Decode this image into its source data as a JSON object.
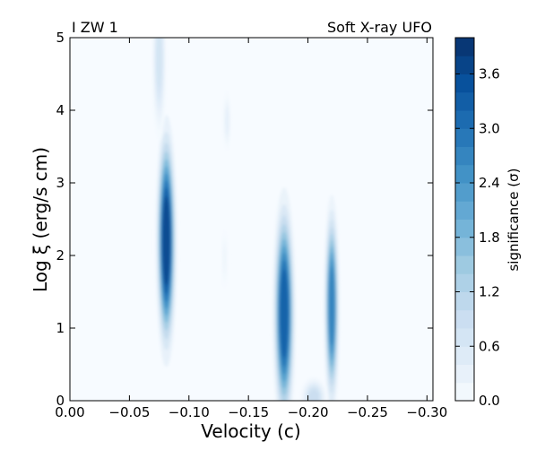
{
  "chart_data": {
    "type": "heatmap",
    "title_left": "I ZW 1",
    "title_right": "Soft X-ray UFO",
    "xlabel": "Velocity (c)",
    "ylabel": "Log ξ (erg/s cm)",
    "colorbar_label": "significance (σ)",
    "xlim": [
      0.0,
      -0.305
    ],
    "ylim": [
      0,
      5
    ],
    "x_ticks": [
      0.0,
      -0.05,
      -0.1,
      -0.15,
      -0.2,
      -0.25,
      -0.3
    ],
    "x_tick_labels": [
      "0.00",
      "−0.05",
      "−0.10",
      "−0.15",
      "−0.20",
      "−0.25",
      "−0.30"
    ],
    "y_ticks": [
      0,
      1,
      2,
      3,
      4,
      5
    ],
    "y_tick_labels": [
      "0",
      "1",
      "2",
      "3",
      "4",
      "5"
    ],
    "colorbar_range": [
      0.0,
      4.0
    ],
    "colorbar_ticks": [
      0.0,
      0.6,
      1.2,
      1.8,
      2.4,
      3.0,
      3.6
    ],
    "colorbar_tick_labels": [
      "0.0",
      "0.6",
      "1.2",
      "1.8",
      "2.4",
      "3.0",
      "3.6"
    ],
    "colormap": "Blues",
    "grid": false,
    "features": [
      {
        "velocity": -0.081,
        "log_xi": 2.2,
        "peak_sigma": 4.0
      },
      {
        "velocity": -0.18,
        "log_xi": 1.2,
        "peak_sigma": 3.6
      },
      {
        "velocity": -0.22,
        "log_xi": 1.3,
        "peak_sigma": 3.0
      },
      {
        "velocity": -0.075,
        "log_xi": 4.7,
        "peak_sigma": 0.8
      },
      {
        "velocity": -0.132,
        "log_xi": 3.85,
        "peak_sigma": 0.4
      },
      {
        "velocity": -0.205,
        "log_xi": 0.05,
        "peak_sigma": 1.0
      },
      {
        "velocity": -0.13,
        "log_xi": 1.95,
        "peak_sigma": 0.2
      }
    ]
  }
}
